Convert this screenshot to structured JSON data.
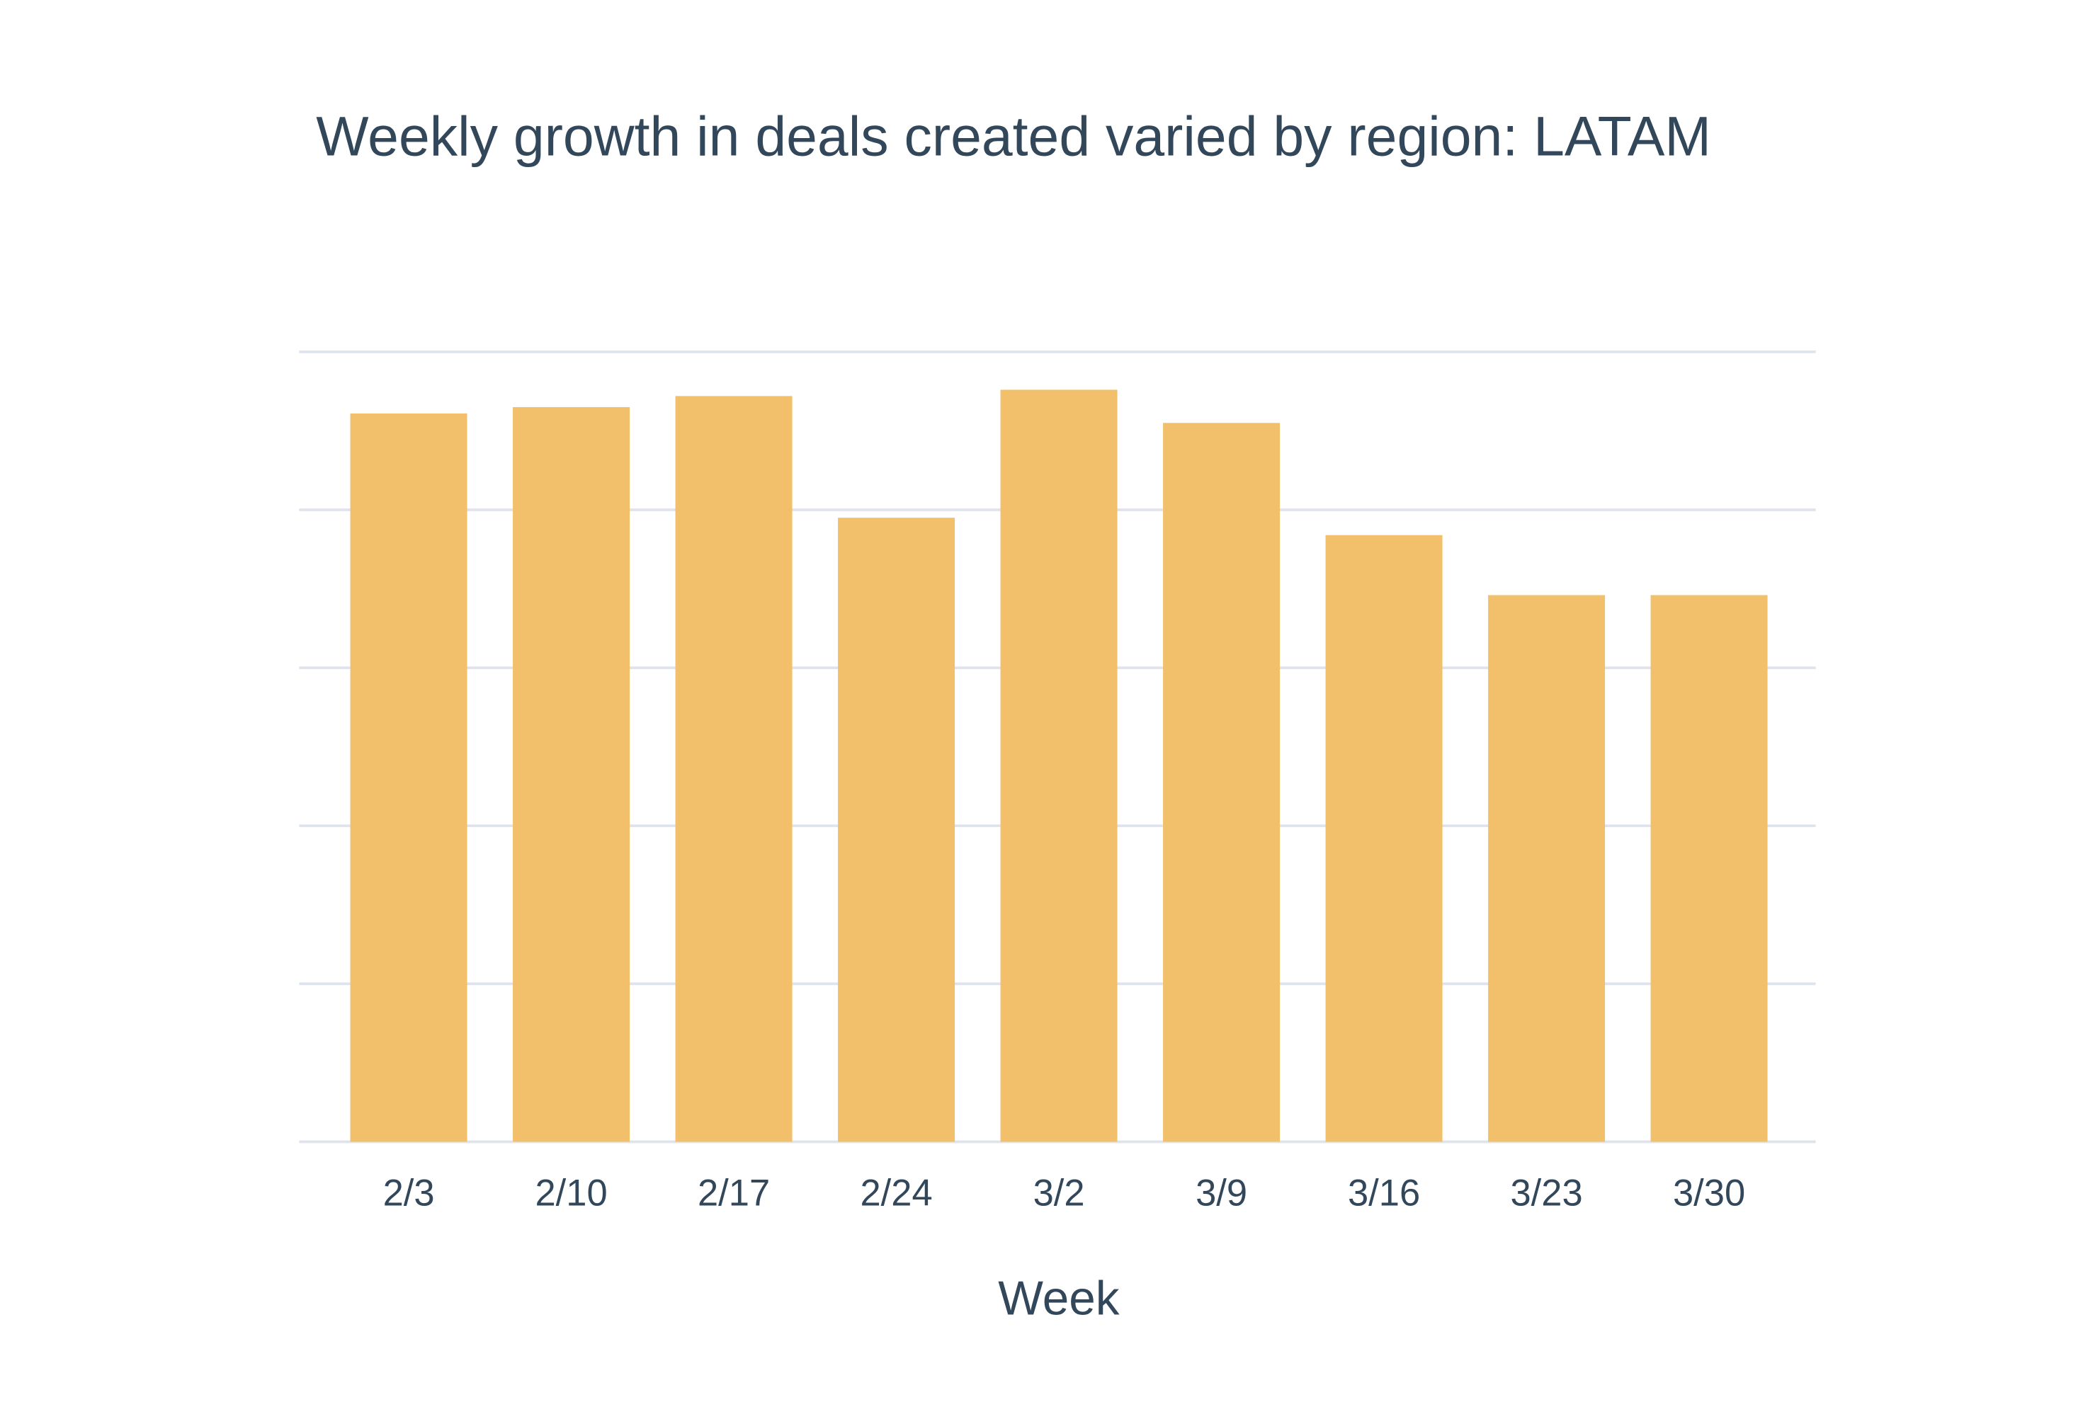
{
  "chart_data": {
    "type": "bar",
    "title": "Weekly growth in deals created varied by region: LATAM",
    "xlabel": "Week",
    "ylabel": "",
    "categories": [
      "2/3",
      "2/10",
      "2/17",
      "2/24",
      "3/2",
      "3/9",
      "3/16",
      "3/23",
      "3/30"
    ],
    "values": [
      4.61,
      4.65,
      4.72,
      3.95,
      4.76,
      4.55,
      3.84,
      3.46,
      3.46
    ],
    "ylim": [
      0,
      5
    ],
    "y_tick_labels_shown": false,
    "grid": true,
    "gridline_count": 6,
    "legend": "none",
    "colors": {
      "bar": "#f2c06b",
      "grid": "#dfe3eb",
      "text": "#33475b"
    }
  }
}
